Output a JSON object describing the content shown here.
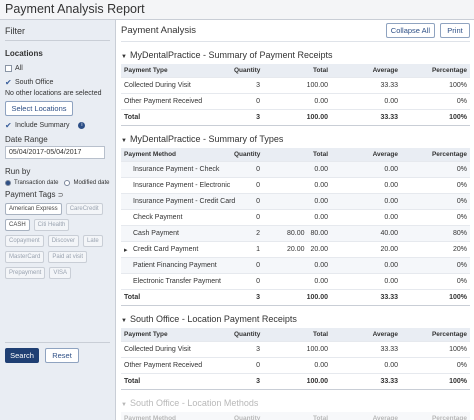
{
  "header": {
    "title": "Payment Analysis Report"
  },
  "filter": {
    "title": "Filter",
    "locations_label": "Locations",
    "all": "All",
    "location": "South Office",
    "note": "No other locations are selected",
    "select_button": "Select Locations",
    "include_summary": "Include Summary",
    "date_range_label": "Date Range",
    "date_range": "05/04/2017-05/04/2017",
    "run_by_label": "Run by",
    "run_by_options": [
      "Transaction date",
      "Modified date"
    ],
    "tags_label": "Payment Tags",
    "tags": [
      "American Express",
      "CareCredit",
      "CASH",
      "Citi Health",
      "Copayment",
      "Discover",
      "Late",
      "MasterCard",
      "Paid at visit",
      "Prepayment",
      "VISA"
    ],
    "search": "Search",
    "reset": "Reset"
  },
  "report": {
    "title": "Payment Analysis",
    "collapse_all": "Collapse All",
    "print": "Print",
    "sections": [
      {
        "title": "MyDentalPractice - Summary of Payment Receipts",
        "columns": [
          "Payment Type",
          "Quantity",
          "Total",
          "Average",
          "Percentage"
        ],
        "rows": [
          {
            "cells": [
              "Collected During Visit",
              "3",
              "100.00",
              "33.33",
              "100%"
            ]
          },
          {
            "cells": [
              "Other Payment Received",
              "0",
              "0.00",
              "0.00",
              "0%"
            ]
          }
        ],
        "total": [
          "Total",
          "3",
          "100.00",
          "33.33",
          "100%"
        ]
      },
      {
        "title": "MyDentalPractice - Summary of Types",
        "columns": [
          "Payment Method",
          "Quantity",
          "Total",
          "Average",
          "Percentage"
        ],
        "rows": [
          {
            "cells": [
              "Insurance Payment - Check",
              "0",
              "0.00",
              "0.00",
              "0%"
            ]
          },
          {
            "cells": [
              "Insurance Payment - Electronic",
              "0",
              "0.00",
              "0.00",
              "0%"
            ]
          },
          {
            "cells": [
              "Insurance Payment - Credit Card",
              "0",
              "0.00",
              "0.00",
              "0%"
            ]
          },
          {
            "cells": [
              "Check Payment",
              "0",
              "0.00",
              "0.00",
              "0%"
            ]
          },
          {
            "cells": [
              "Cash Payment",
              "2",
              "80.00",
              "40.00",
              "80%"
            ],
            "detail": "80.00"
          },
          {
            "cells": [
              "Credit Card Payment",
              "1",
              "20.00",
              "20.00",
              "20%"
            ],
            "detail": "20.00"
          },
          {
            "cells": [
              "Patient Financing Payment",
              "0",
              "0.00",
              "0.00",
              "0%"
            ]
          },
          {
            "cells": [
              "Electronic Transfer Payment",
              "0",
              "0.00",
              "0.00",
              "0%"
            ]
          }
        ],
        "total": [
          "Total",
          "3",
          "100.00",
          "33.33",
          "100%"
        ]
      },
      {
        "title": "South Office - Location Payment Receipts",
        "columns": [
          "Payment Type",
          "Quantity",
          "Total",
          "Average",
          "Percentage"
        ],
        "rows": [
          {
            "cells": [
              "Collected During Visit",
              "3",
              "100.00",
              "33.33",
              "100%"
            ]
          },
          {
            "cells": [
              "Other Payment Received",
              "0",
              "0.00",
              "0.00",
              "0%"
            ]
          }
        ],
        "total": [
          "Total",
          "3",
          "100.00",
          "33.33",
          "100%"
        ]
      },
      {
        "title": "South Office - Location Methods",
        "columns": [
          "Payment Method",
          "Quantity",
          "Total",
          "Average",
          "Percentage"
        ]
      }
    ]
  }
}
